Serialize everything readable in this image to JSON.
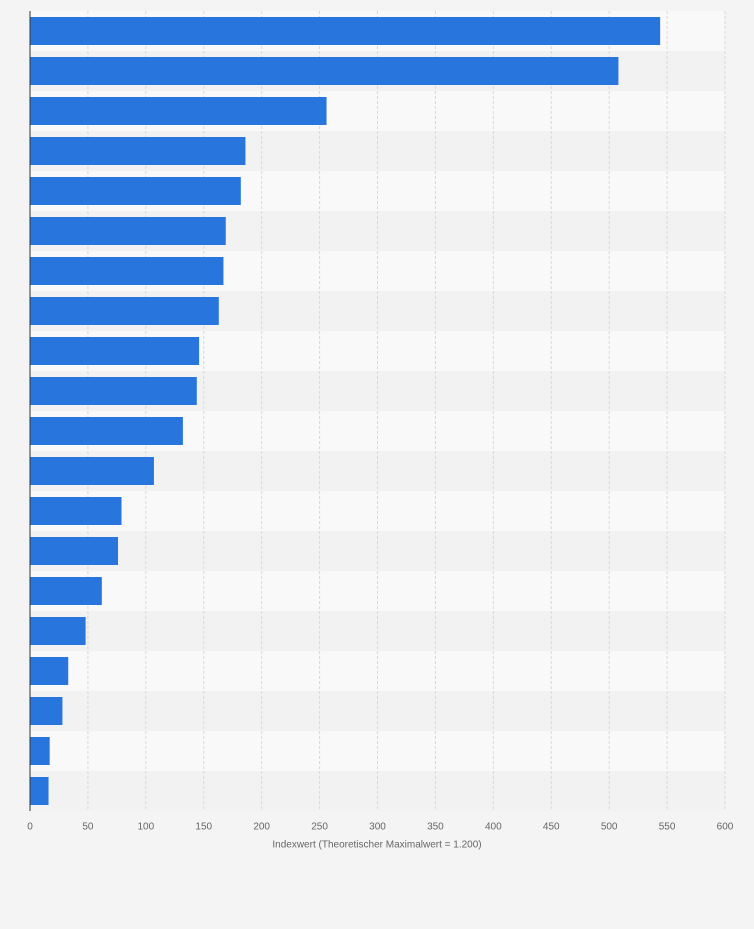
{
  "chart_data": {
    "type": "bar",
    "orientation": "horizontal",
    "x_label": "Indexwert (Theoretischer Maximalwert = 1.200)",
    "categories": [
      null,
      null,
      null,
      null,
      null,
      null,
      null,
      null,
      null,
      null,
      null,
      null,
      null,
      null,
      null,
      null,
      null,
      null,
      null,
      null
    ],
    "values": [
      544,
      508,
      256,
      186,
      182,
      169,
      167,
      163,
      146,
      144,
      132,
      107,
      79,
      76,
      62,
      48,
      33,
      28,
      17,
      16
    ],
    "color": "#2876dd",
    "xlim": [
      0,
      600
    ],
    "xticks": [
      0,
      50,
      100,
      150,
      200,
      250,
      300,
      350,
      400,
      450,
      500,
      550,
      600
    ],
    "grid": true
  }
}
